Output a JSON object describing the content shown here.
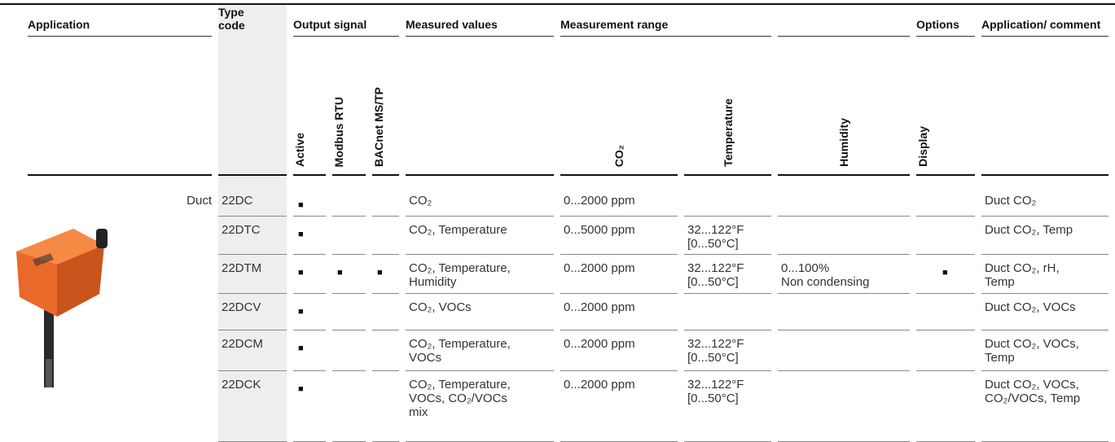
{
  "header": {
    "columns": [
      "Application",
      "Type code",
      "Output signal",
      "Measured values",
      "Measurement range",
      "Options",
      "Application/ comment"
    ],
    "subcolumns": [
      "Active",
      "Modbus RTU",
      "BACnet MS/TP",
      "CO₂",
      "Temperature",
      "Humidity",
      "Display"
    ]
  },
  "application": "Duct",
  "rows": [
    [
      "22DC",
      "■",
      null,
      null,
      "CO₂",
      "0...2000 ppm",
      null,
      null,
      null,
      "Duct CO₂"
    ],
    [
      "22DTC",
      "■",
      null,
      null,
      "CO₂, Temperature",
      "0...5000 ppm",
      "32...122°F\n[0...50°C]",
      null,
      null,
      "Duct CO₂, Temp"
    ],
    [
      "22DTM",
      "■",
      "■",
      "■",
      "CO₂, Temperature,\nHumidity",
      "0...2000 ppm",
      "32...122°F\n[0...50°C]",
      "0...100%\nNon condensing",
      "■",
      "Duct CO₂, rH,\nTemp"
    ],
    [
      "22DCV",
      "■",
      null,
      null,
      "CO₂, VOCs",
      "0...2000 ppm",
      null,
      null,
      null,
      "Duct CO₂, VOCs"
    ],
    [
      "22DCM",
      "■",
      null,
      null,
      "CO₂, Temperature,\nVOCs",
      "0...2000 ppm",
      "32...122°F\n[0...50°C]",
      null,
      null,
      "Duct CO₂, VOCs,\nTemp"
    ],
    [
      "22DCK",
      "■",
      null,
      null,
      "CO₂, Temperature,\nVOCs, CO₂/VOCs\nmix",
      "0...2000 ppm",
      "32...122°F\n[0...50°C]",
      null,
      null,
      "Duct CO₂, VOCs,\nCO₂/VOCs, Temp"
    ]
  ]
}
